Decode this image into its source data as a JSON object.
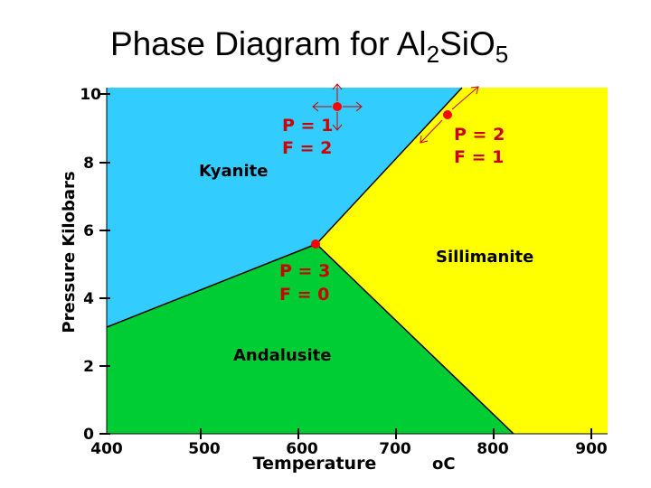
{
  "title": {
    "prefix": "Phase Diagram for Al",
    "sub1": "2",
    "mid": "SiO",
    "sub2": "5"
  },
  "axes": {
    "ylabel": "Pressure Kilobars",
    "xlabel": "Temperature",
    "xunit": "oC",
    "xticks": [
      "400",
      "500",
      "600",
      "700",
      "800",
      "900"
    ],
    "yticks": [
      "0",
      "2",
      "4",
      "6",
      "8",
      "10"
    ]
  },
  "regions": {
    "kyanite": {
      "label": "Kyanite",
      "color": "#33ccff"
    },
    "sillimanite": {
      "label": "Sillimanite",
      "color": "#ffff00"
    },
    "andalusite": {
      "label": "Andalusite",
      "color": "#00cc33"
    }
  },
  "annotations": {
    "p1_line1": "P = 1",
    "p1_line2": "F = 2",
    "p2_line1": "P = 2",
    "p2_line2": "F = 1",
    "p3_line1": "P = 3",
    "p3_line2": "F = 0"
  },
  "colors": {
    "point": "#ff0000",
    "annotation": "#cc0000",
    "boundary": "#000000"
  }
}
